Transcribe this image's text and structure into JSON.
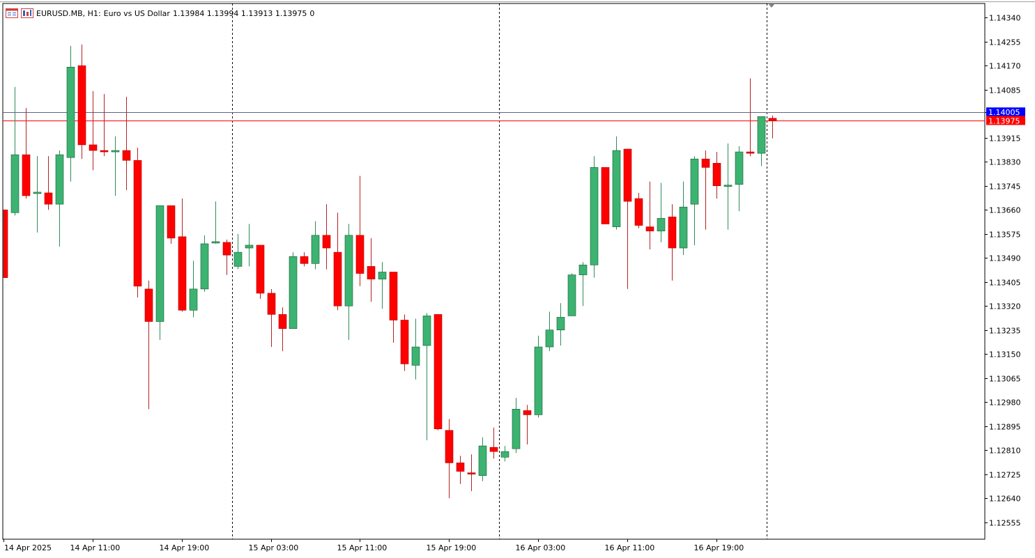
{
  "header": {
    "symbol": "EURUSD.MB, H1:",
    "description": "Euro vs US Dollar",
    "ohlc": "1.13984 1.13994 1.13913 1.13975",
    "volume": "0",
    "icons": [
      "chart-window-icon",
      "chart-bars-icon"
    ]
  },
  "chart_data": {
    "type": "candlestick",
    "timeframe": "H1",
    "ylim": [
      1.12495,
      1.1439
    ],
    "y_ticks": [
      "1.14340",
      "1.14255",
      "1.14170",
      "1.14085",
      "1.14005",
      "1.13915",
      "1.13830",
      "1.13745",
      "1.13660",
      "1.13575",
      "1.13490",
      "1.13405",
      "1.13320",
      "1.13235",
      "1.13150",
      "1.13065",
      "1.12980",
      "1.12895",
      "1.12810",
      "1.12725",
      "1.12640",
      "1.12555"
    ],
    "x_labels": [
      {
        "index": 0,
        "label": "14 Apr 2025"
      },
      {
        "index": 8,
        "label": "14 Apr 11:00"
      },
      {
        "index": 16,
        "label": "14 Apr 19:00"
      },
      {
        "index": 24,
        "label": "15 Apr 03:00"
      },
      {
        "index": 32,
        "label": "15 Apr 11:00"
      },
      {
        "index": 40,
        "label": "15 Apr 19:00"
      },
      {
        "index": 48,
        "label": "16 Apr 03:00"
      },
      {
        "index": 56,
        "label": "16 Apr 11:00"
      },
      {
        "index": 64,
        "label": "16 Apr 19:00"
      }
    ],
    "day_separators": [
      20.5,
      44.5,
      68.5
    ],
    "bid_line": {
      "value": 1.13975,
      "label": "1.13975",
      "color": "#ff0000"
    },
    "ask_line": {
      "value": 1.14005,
      "label": "1.14005",
      "color": "#0000ff"
    },
    "colors": {
      "bull": "#3cb371",
      "bear": "#ff0000",
      "bull_border": "#145a32",
      "bear_border": "#b00000",
      "wick_bull": "#2e8b57",
      "wick_bear": "#b22222"
    },
    "candles": [
      [
        1.1366,
        1.1366,
        1.1342,
        1.1342
      ],
      [
        1.1365,
        1.14095,
        1.1364,
        1.13855
      ],
      [
        1.13855,
        1.1402,
        1.137,
        1.1371
      ],
      [
        1.1372,
        1.1385,
        1.1358,
        1.1372
      ],
      [
        1.1372,
        1.1385,
        1.1366,
        1.1368
      ],
      [
        1.1368,
        1.1387,
        1.1353,
        1.13855
      ],
      [
        1.13845,
        1.1424,
        1.1376,
        1.14165
      ],
      [
        1.1417,
        1.14245,
        1.1384,
        1.1389
      ],
      [
        1.1389,
        1.1408,
        1.138,
        1.1387
      ],
      [
        1.1387,
        1.1407,
        1.1385,
        1.13865
      ],
      [
        1.13865,
        1.1392,
        1.1371,
        1.1387
      ],
      [
        1.1387,
        1.1406,
        1.1373,
        1.13835
      ],
      [
        1.13835,
        1.1388,
        1.1335,
        1.1339
      ],
      [
        1.1338,
        1.1341,
        1.12955,
        1.13265
      ],
      [
        1.13265,
        1.13675,
        1.132,
        1.13675
      ],
      [
        1.13675,
        1.13675,
        1.1354,
        1.1356
      ],
      [
        1.13565,
        1.137,
        1.133,
        1.13305
      ],
      [
        1.13305,
        1.1348,
        1.1328,
        1.1338
      ],
      [
        1.1338,
        1.1357,
        1.1337,
        1.1354
      ],
      [
        1.13545,
        1.1369,
        1.1354,
        1.13545
      ],
      [
        1.13545,
        1.13555,
        1.1343,
        1.135
      ],
      [
        1.1346,
        1.13575,
        1.1345,
        1.1351
      ],
      [
        1.13525,
        1.1361,
        1.1346,
        1.13535
      ],
      [
        1.13535,
        1.13535,
        1.13345,
        1.13365
      ],
      [
        1.13365,
        1.1338,
        1.13175,
        1.1329
      ],
      [
        1.1329,
        1.13315,
        1.1316,
        1.1324
      ],
      [
        1.1324,
        1.1351,
        1.1324,
        1.13495
      ],
      [
        1.13495,
        1.1351,
        1.1346,
        1.1347
      ],
      [
        1.1347,
        1.1362,
        1.1345,
        1.1357
      ],
      [
        1.1357,
        1.1368,
        1.1345,
        1.13525
      ],
      [
        1.1351,
        1.1365,
        1.13305,
        1.1332
      ],
      [
        1.1332,
        1.1361,
        1.132,
        1.1357
      ],
      [
        1.1357,
        1.1378,
        1.1339,
        1.13435
      ],
      [
        1.1346,
        1.1356,
        1.13335,
        1.13415
      ],
      [
        1.13415,
        1.13475,
        1.1331,
        1.1344
      ],
      [
        1.1344,
        1.1344,
        1.1319,
        1.1327
      ],
      [
        1.1327,
        1.1329,
        1.1309,
        1.13115
      ],
      [
        1.1311,
        1.13275,
        1.1306,
        1.13175
      ],
      [
        1.1318,
        1.13295,
        1.12845,
        1.13285
      ],
      [
        1.1329,
        1.1329,
        1.1288,
        1.12885
      ],
      [
        1.1288,
        1.1292,
        1.1264,
        1.12765
      ],
      [
        1.12765,
        1.1279,
        1.1269,
        1.12735
      ],
      [
        1.1273,
        1.12795,
        1.12665,
        1.12725
      ],
      [
        1.1272,
        1.12855,
        1.127,
        1.12825
      ],
      [
        1.1282,
        1.1289,
        1.1278,
        1.12805
      ],
      [
        1.12785,
        1.12825,
        1.1277,
        1.12805
      ],
      [
        1.12815,
        1.12995,
        1.128,
        1.12955
      ],
      [
        1.1295,
        1.1297,
        1.1283,
        1.12935
      ],
      [
        1.12935,
        1.13215,
        1.12925,
        1.13175
      ],
      [
        1.13175,
        1.133,
        1.1316,
        1.13235
      ],
      [
        1.13235,
        1.1333,
        1.1318,
        1.1328
      ],
      [
        1.13285,
        1.13435,
        1.13285,
        1.1343
      ],
      [
        1.1343,
        1.13475,
        1.1332,
        1.13465
      ],
      [
        1.13465,
        1.1385,
        1.1342,
        1.1381
      ],
      [
        1.1381,
        1.1381,
        1.1361,
        1.1361
      ],
      [
        1.136,
        1.1392,
        1.1359,
        1.1387
      ],
      [
        1.13875,
        1.13875,
        1.1338,
        1.1369
      ],
      [
        1.137,
        1.1372,
        1.13595,
        1.13605
      ],
      [
        1.136,
        1.1376,
        1.1352,
        1.13585
      ],
      [
        1.13585,
        1.13755,
        1.13545,
        1.1363
      ],
      [
        1.13635,
        1.1368,
        1.1341,
        1.13525
      ],
      [
        1.13525,
        1.1376,
        1.135,
        1.1367
      ],
      [
        1.1368,
        1.1385,
        1.13535,
        1.1384
      ],
      [
        1.1384,
        1.1387,
        1.1359,
        1.1381
      ],
      [
        1.13825,
        1.13865,
        1.137,
        1.13745
      ],
      [
        1.13745,
        1.13895,
        1.1359,
        1.13745
      ],
      [
        1.1375,
        1.13885,
        1.13655,
        1.13865
      ],
      [
        1.13865,
        1.14125,
        1.1385,
        1.1386
      ],
      [
        1.1386,
        1.1399,
        1.13815,
        1.1399
      ],
      [
        1.13984,
        1.13994,
        1.13913,
        1.13975
      ]
    ]
  }
}
